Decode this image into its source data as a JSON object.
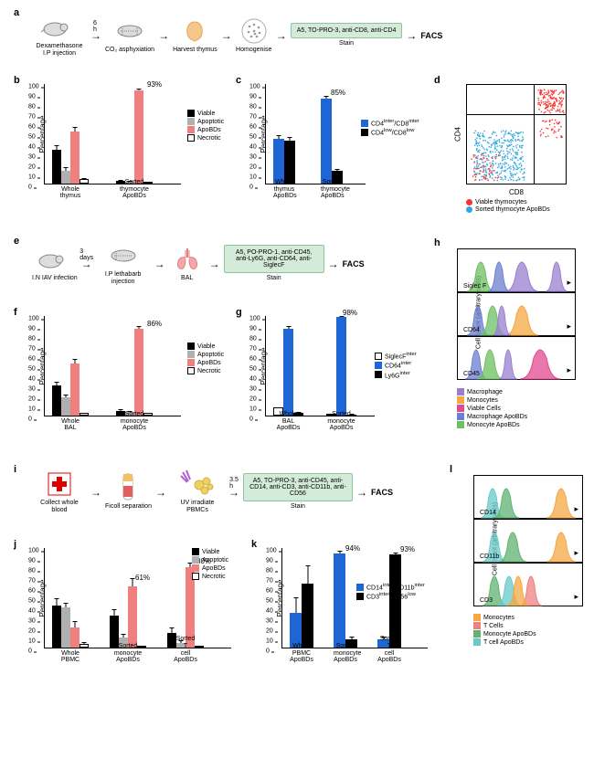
{
  "colors": {
    "viable": "#000000",
    "apoptotic": "#b0b0b0",
    "apobds": "#f08080",
    "necrotic": "#ffffff",
    "blue": "#1e66d6",
    "black": "#000000",
    "macrophage": "#9a7fd0",
    "monocytes": "#f4a742",
    "viable_cells": "#e04a90",
    "mac_apobds": "#6b7fd0",
    "mono_apobds": "#6cc060",
    "tcells": "#f08080",
    "mono_apobds2": "#5fb270",
    "tcell_apobds": "#68c9c9",
    "red_sc": "#ff3030",
    "blue_sc": "#2fa8e0"
  },
  "panel_a": {
    "label": "a",
    "steps": [
      "Dexamethasone I.P injection",
      "CO₂ asphyxiation",
      "Harvest thymus",
      "Homogenise",
      "Stain"
    ],
    "time": "6 h",
    "stain": "A5, TO-PRO-3, anti-CD8, anti-CD4",
    "facs": "FACS"
  },
  "panel_b": {
    "label": "b",
    "ylabel": "Percentage",
    "ymax": 100,
    "ytick": 10,
    "groups": [
      "Whole thymus",
      "Sorted thymocyte ApoBDs"
    ],
    "series": [
      {
        "name": "Viable",
        "values": [
          34,
          3
        ],
        "err": [
          4,
          1
        ]
      },
      {
        "name": "Apoptotic",
        "values": [
          13,
          2
        ],
        "err": [
          3,
          1
        ]
      },
      {
        "name": "ApoBDs",
        "values": [
          52,
          93
        ],
        "err": [
          4,
          2
        ]
      },
      {
        "name": "Necrotic",
        "values": [
          5,
          2
        ],
        "err": [
          1,
          1
        ]
      }
    ],
    "annot": "93%"
  },
  "panel_c": {
    "label": "c",
    "ylabel": "Percentage",
    "ymax": 100,
    "ytick": 10,
    "groups": [
      "Whole thymus ApoBDs",
      "Sorted thymocyte ApoBDs"
    ],
    "series": [
      {
        "name": "CD4inter/CD8inter",
        "values": [
          45,
          85
        ],
        "err": [
          3,
          2
        ]
      },
      {
        "name": "CD4low/CD8low",
        "values": [
          43,
          13
        ],
        "err": [
          3,
          2
        ]
      }
    ],
    "annot": "85%"
  },
  "panel_d": {
    "label": "d",
    "ylabel": "CD4",
    "xlabel": "CD8",
    "legend": [
      "Viable thymocytes",
      "Sorted thymocyte ApoBDs"
    ]
  },
  "panel_e": {
    "label": "e",
    "steps": [
      "I.N IAV infection",
      "I.P lethabarb injection",
      "BAL",
      "Stain"
    ],
    "time": "3 days",
    "stain": "A5, PO-PRO-1, anti-CD45, anti-Ly6G, anti-CD64, anti-SiglecF",
    "facs": "FACS"
  },
  "panel_f": {
    "label": "f",
    "ylabel": "Percentage",
    "ymax": 100,
    "ytick": 10,
    "groups": [
      "Whole BAL",
      "Sorted monocyte ApoBDs"
    ],
    "series": [
      {
        "name": "Viable",
        "values": [
          30,
          5
        ],
        "err": [
          4,
          1
        ]
      },
      {
        "name": "Apoptotic",
        "values": [
          18,
          4
        ],
        "err": [
          3,
          1
        ]
      },
      {
        "name": "ApoBDs",
        "values": [
          52,
          86
        ],
        "err": [
          4,
          3
        ]
      },
      {
        "name": "Necrotic",
        "values": [
          3,
          3
        ],
        "err": [
          1,
          1
        ]
      }
    ],
    "annot": "86%"
  },
  "panel_g": {
    "label": "g",
    "ylabel": "Percentage",
    "ymax": 100,
    "ytick": 10,
    "groups": [
      "Whole BAL ApoBDs",
      "Sorted monocyte ApoBDs"
    ],
    "series": [
      {
        "name": "SiglecFinter",
        "values": [
          8,
          2
        ],
        "err": [
          1,
          0.5
        ]
      },
      {
        "name": "CD64inter",
        "values": [
          86,
          98
        ],
        "err": [
          3,
          1
        ]
      },
      {
        "name": "Ly6Ginter",
        "values": [
          3,
          1
        ],
        "err": [
          1,
          0.5
        ]
      }
    ],
    "annot": "98%"
  },
  "panel_h": {
    "label": "h",
    "ylabel": "Cell count (arbitrary units)",
    "axes": [
      "Siglec F",
      "CD64",
      "CD45"
    ],
    "legend": [
      "Macrophage",
      "Monocytes",
      "Viable Cells",
      "Macrophage ApoBDs",
      "Monocyte ApoBDs"
    ]
  },
  "panel_i": {
    "label": "i",
    "steps": [
      "Collect whole blood",
      "Ficoll separation",
      "UV irradiate PBMCs",
      "Stain"
    ],
    "time": "3.5 h",
    "stain": "A5, TO-PRO-3, anti-CD45, anti-CD14, anti-CD3, anti-CD11b, anti-CD56",
    "facs": "FACS"
  },
  "panel_j": {
    "label": "j",
    "ylabel": "Percentage",
    "ymax": 100,
    "ytick": 10,
    "groups": [
      "Whole PBMC",
      "Sorted monocyte ApoBDs",
      "Sorted T cell ApoBDs"
    ],
    "series": [
      {
        "name": "Viable",
        "values": [
          42,
          32,
          15
        ],
        "err": [
          7,
          6,
          5
        ]
      },
      {
        "name": "Apoptotic",
        "values": [
          40,
          10,
          5
        ],
        "err": [
          5,
          4,
          2
        ]
      },
      {
        "name": "ApoBDs",
        "values": [
          20,
          61,
          80
        ],
        "err": [
          6,
          8,
          5
        ]
      },
      {
        "name": "Necrotic",
        "values": [
          4,
          2,
          2
        ],
        "err": [
          2,
          1,
          1
        ]
      }
    ],
    "annot1": "61%",
    "annot2": "80%"
  },
  "panel_k": {
    "label": "k",
    "ylabel": "Percentage",
    "ymax": 100,
    "ytick": 10,
    "groups": [
      "Whole PBMC ApoBDs",
      "Sorted monocyte ApoBDs",
      "Sorted T cell ApoBDs"
    ],
    "series": [
      {
        "name": "CD14inter/CD11binter",
        "values": [
          35,
          94,
          8
        ],
        "err": [
          15,
          2,
          3
        ]
      },
      {
        "name": "CD3inter/CD56low",
        "values": [
          64,
          8,
          93
        ],
        "err": [
          18,
          3,
          2
        ]
      }
    ],
    "annot1": "94%",
    "annot2": "93%"
  },
  "panel_l": {
    "label": "l",
    "ylabel": "Cell count (arbitrary units)",
    "axes": [
      "CD14",
      "CD11b",
      "CD3"
    ],
    "legend": [
      "Monocytes",
      "T Cells",
      "Monocyte ApoBDs",
      "T cell ApoBDs"
    ]
  }
}
